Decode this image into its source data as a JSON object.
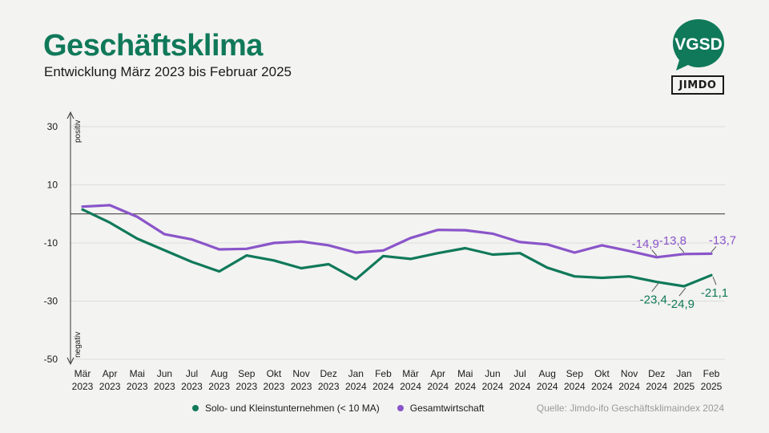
{
  "header": {
    "title": "Geschäftsklima",
    "subtitle": "Entwicklung März 2023 bis Februar 2025"
  },
  "logos": {
    "vgsd": "VGSD",
    "jimdo": "JIMDO"
  },
  "colors": {
    "solo": "#10795a",
    "gesamt": "#8a55c9",
    "title": "#10795a"
  },
  "source": "Quelle: Jimdo-ifo Geschäftsklimaindex 2024",
  "chart_data": {
    "type": "line",
    "ylim": [
      -50,
      30
    ],
    "yticks": [
      30,
      10,
      -10,
      -30,
      -50
    ],
    "baseline": 0,
    "axis_labels": {
      "top": "positiv",
      "bottom": "negativ"
    },
    "grid": true,
    "legend_position": "bottom",
    "categories": [
      [
        "Mär",
        "2023"
      ],
      [
        "Apr",
        "2023"
      ],
      [
        "Mai",
        "2023"
      ],
      [
        "Jun",
        "2023"
      ],
      [
        "Jul",
        "2023"
      ],
      [
        "Aug",
        "2023"
      ],
      [
        "Sep",
        "2023"
      ],
      [
        "Okt",
        "2023"
      ],
      [
        "Nov",
        "2023"
      ],
      [
        "Dez",
        "2023"
      ],
      [
        "Jan",
        "2024"
      ],
      [
        "Feb",
        "2024"
      ],
      [
        "Mär",
        "2024"
      ],
      [
        "Apr",
        "2024"
      ],
      [
        "Mai",
        "2024"
      ],
      [
        "Jun",
        "2024"
      ],
      [
        "Jul",
        "2024"
      ],
      [
        "Aug",
        "2024"
      ],
      [
        "Sep",
        "2024"
      ],
      [
        "Okt",
        "2024"
      ],
      [
        "Nov",
        "2024"
      ],
      [
        "Dez",
        "2024"
      ],
      [
        "Jan",
        "2025"
      ],
      [
        "Feb",
        "2025"
      ]
    ],
    "series": [
      {
        "name": "Solo- und Kleinstunternehmen (< 10 MA)",
        "key": "solo",
        "values": [
          1.5,
          -3.0,
          -8.5,
          -12.5,
          -16.5,
          -19.8,
          -14.3,
          -16.0,
          -18.7,
          -17.3,
          -22.5,
          -14.5,
          -15.5,
          -13.5,
          -11.8,
          -14.0,
          -13.5,
          -18.5,
          -21.5,
          -22.0,
          -21.5,
          -23.4,
          -24.9,
          -21.1
        ],
        "labels": [
          {
            "index": 21,
            "text": "-23,4"
          },
          {
            "index": 22,
            "text": "-24,9"
          },
          {
            "index": 23,
            "text": "-21,1"
          }
        ]
      },
      {
        "name": "Gesamtwirtschaft",
        "key": "gesamt",
        "values": [
          2.5,
          3.0,
          -1.0,
          -7.0,
          -8.8,
          -12.2,
          -12.0,
          -10.0,
          -9.5,
          -10.8,
          -13.3,
          -12.6,
          -8.3,
          -5.5,
          -5.6,
          -6.8,
          -9.7,
          -10.5,
          -13.3,
          -10.8,
          -12.8,
          -14.9,
          -13.8,
          -13.7
        ],
        "labels": [
          {
            "index": 21,
            "text": "-14,9"
          },
          {
            "index": 22,
            "text": "-13,8"
          },
          {
            "index": 23,
            "text": "-13,7"
          }
        ]
      }
    ]
  }
}
